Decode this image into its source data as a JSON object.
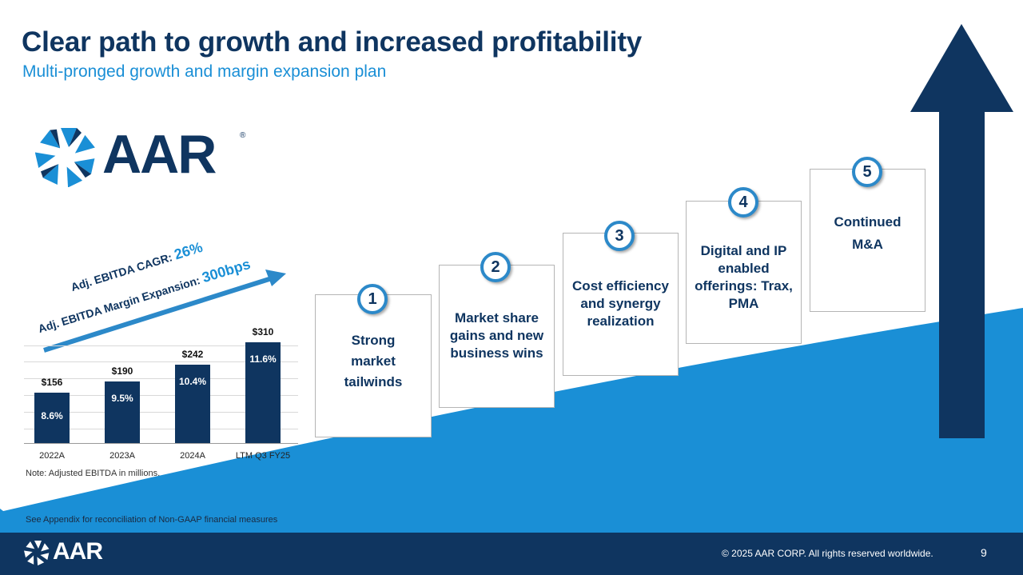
{
  "header": {
    "title": "Clear path to growth and increased profitability",
    "subtitle": "Multi-pronged growth and margin expansion plan"
  },
  "logo": {
    "text": "AAR",
    "registered": "®"
  },
  "cagr": {
    "line1_prefix": "Adj. EBITDA CAGR: ",
    "line1_value": "26%",
    "line2_prefix": "Adj. EBITDA Margin Expansion: ",
    "line2_value": "300bps"
  },
  "chart_data": {
    "type": "bar",
    "categories": [
      "2022A",
      "2023A",
      "2024A",
      "LTM Q3 FY25"
    ],
    "values": [
      156,
      190,
      242,
      310
    ],
    "value_labels": [
      "$156",
      "$190",
      "$242",
      "$310"
    ],
    "margin_labels": [
      "8.6%",
      "9.5%",
      "10.4%",
      "11.6%"
    ],
    "ylim": [
      0,
      310
    ]
  },
  "note": "Note: Adjusted EBITDA in millions.",
  "appendix": "See Appendix for reconciliation of Non-GAAP financial measures",
  "steps": [
    {
      "number": "1",
      "label": "Strong market tailwinds"
    },
    {
      "number": "2",
      "label": "Market share gains and new business wins"
    },
    {
      "number": "3",
      "label": "Cost efficiency and synergy realization"
    },
    {
      "number": "4",
      "label": "Digital and IP enabled offerings: Trax, PMA"
    },
    {
      "number": "5",
      "label": "Continued M&A"
    }
  ],
  "footer": {
    "copyright": "© 2025 AAR CORP. All rights reserved worldwide.",
    "page_number": "9",
    "logo_text": "AAR"
  },
  "colors": {
    "navy": "#0f3560",
    "blue": "#1a8fd6",
    "wedge": "#1a8fd6",
    "badge_ring": "#2c89c9"
  }
}
